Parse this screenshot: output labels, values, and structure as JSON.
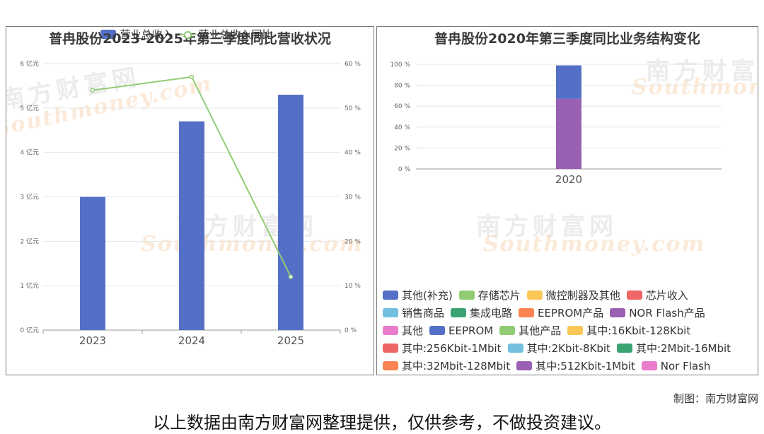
{
  "watermark": {
    "cn": "南方财富网",
    "en": "Southmoney.com"
  },
  "left": {
    "title": "普冉股份2023-2025年第三季度同比营收状况",
    "legend": {
      "bar": "营业总收入",
      "line": "营业总收入同比"
    },
    "colors": {
      "bar": "#5470c6",
      "line": "#91cc75"
    }
  },
  "right": {
    "title": "普冉股份2020年第三季度同比业务结构变化",
    "legend_items": [
      {
        "label": "其他(补充)",
        "color": "#5470c6"
      },
      {
        "label": "存储芯片",
        "color": "#91cc75"
      },
      {
        "label": "微控制器及其他",
        "color": "#fac858"
      },
      {
        "label": "芯片收入",
        "color": "#ee6666"
      },
      {
        "label": "销售商品",
        "color": "#73c0de"
      },
      {
        "label": "集成电路",
        "color": "#3ba272"
      },
      {
        "label": "EEPROM产品",
        "color": "#fc8452"
      },
      {
        "label": "NOR Flash产品",
        "color": "#9a60b4"
      },
      {
        "label": "其他",
        "color": "#ea7ccc"
      },
      {
        "label": "EEPROM",
        "color": "#5470c6"
      },
      {
        "label": "其他产品",
        "color": "#91cc75"
      },
      {
        "label": "其中:16Kbit-128Kbit",
        "color": "#fac858"
      },
      {
        "label": "其中:256Kbit-1Mbit",
        "color": "#ee6666"
      },
      {
        "label": "其中:2Kbit-8Kbit",
        "color": "#73c0de"
      },
      {
        "label": "其中:2Mbit-16Mbit",
        "color": "#3ba272"
      },
      {
        "label": "其中:32Mbit-128Mbit",
        "color": "#fc8452"
      },
      {
        "label": "其中:512Kbit-1Mbit",
        "color": "#9a60b4"
      },
      {
        "label": "Nor Flash",
        "color": "#ea7ccc"
      }
    ],
    "legend_rows": [
      4,
      4,
      4,
      3,
      3
    ]
  },
  "credit": "制图：南方财富网",
  "disclaimer": "以上数据由南方财富网整理提供，仅供参考，不做投资建议。",
  "chart_data": [
    {
      "type": "bar",
      "title": "普冉股份2023-2025年第三季度同比营收状况",
      "categories": [
        "2023",
        "2024",
        "2025"
      ],
      "series": [
        {
          "name": "营业总收入",
          "type": "bar",
          "axis": "left",
          "values": [
            3.0,
            4.7,
            5.3
          ]
        },
        {
          "name": "营业总收入同比",
          "type": "line",
          "axis": "right",
          "values": [
            54,
            57,
            12
          ]
        }
      ],
      "y_left": {
        "ticks": [
          "0 亿元",
          "1 亿元",
          "2 亿元",
          "3 亿元",
          "4 亿元",
          "5 亿元",
          "6 亿元"
        ],
        "ylim": [
          0,
          6
        ]
      },
      "y_right": {
        "ticks": [
          "0 %",
          "10 %",
          "20 %",
          "30 %",
          "40 %",
          "50 %",
          "60 %"
        ],
        "ylim": [
          0,
          60
        ]
      },
      "grid": true,
      "legend": "bottom"
    },
    {
      "type": "bar",
      "stacked": true,
      "title": "普冉股份2020年第三季度同比业务结构变化",
      "categories": [
        "2020"
      ],
      "series": [
        {
          "name": "NOR Flash产品",
          "values": [
            67
          ]
        },
        {
          "name": "EEPROM产品",
          "values": [
            0
          ]
        },
        {
          "name": "其他(补充)",
          "values": [
            32
          ]
        }
      ],
      "y": {
        "ticks": [
          "0 %",
          "20 %",
          "40 %",
          "60 %",
          "80 %",
          "100 %"
        ],
        "ylim": [
          0,
          100
        ]
      },
      "legend": "bottom"
    }
  ]
}
